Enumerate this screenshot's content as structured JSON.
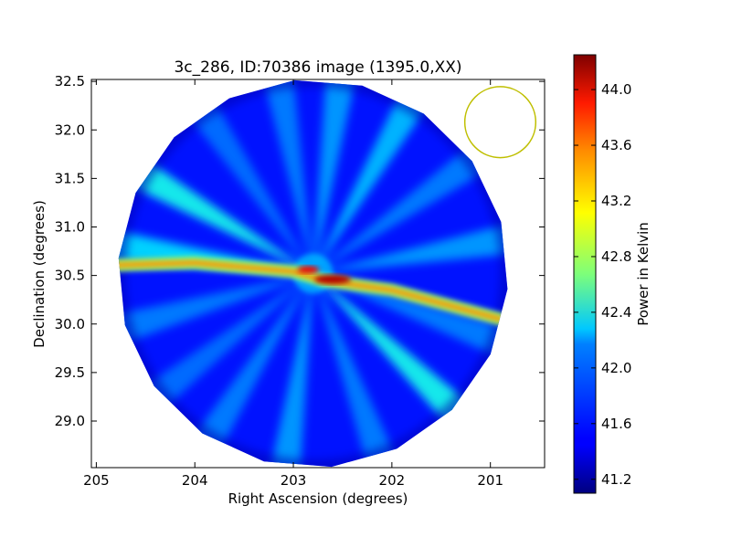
{
  "chart_data": {
    "type": "heatmap",
    "title": "3c_286, ID:70386 image (1395.0,XX)",
    "xlabel": "Right Ascension (degrees)",
    "ylabel": "Declination (degrees)",
    "colorbar_label": "Power in Kelvin",
    "colormap": "jet",
    "xlim": [
      205.05,
      200.45
    ],
    "ylim": [
      28.52,
      32.52
    ],
    "x_ticks": [
      205,
      204,
      203,
      202,
      201
    ],
    "y_ticks": [
      29.0,
      29.5,
      30.0,
      30.5,
      31.0,
      31.5,
      32.0,
      32.5
    ],
    "x_tick_labels": [
      "205",
      "204",
      "203",
      "202",
      "201"
    ],
    "y_tick_labels": [
      "29.0",
      "29.5",
      "30.0",
      "30.5",
      "31.0",
      "31.5",
      "32.0",
      "32.5"
    ],
    "colorbar_range": [
      41.1,
      44.25
    ],
    "colorbar_ticks": [
      41.2,
      41.6,
      42.0,
      42.4,
      42.8,
      43.2,
      43.6,
      44.0
    ],
    "colorbar_tick_labels": [
      "41.2",
      "41.6",
      "42.0",
      "42.4",
      "42.8",
      "43.2",
      "43.6",
      "44.0"
    ],
    "field": {
      "center_ra": 202.8,
      "center_dec": 30.52,
      "radius_deg": 2.0,
      "base_level": 41.55,
      "spokes": [
        {
          "angle_deg": 10,
          "level": 42.0
        },
        {
          "angle_deg": 35,
          "level": 41.9
        },
        {
          "angle_deg": 60,
          "level": 42.1
        },
        {
          "angle_deg": 82,
          "level": 42.0
        },
        {
          "angle_deg": 100,
          "level": 41.9
        },
        {
          "angle_deg": 124,
          "level": 41.85
        },
        {
          "angle_deg": 150,
          "level": 42.35
        },
        {
          "angle_deg": 172,
          "level": 42.2
        },
        {
          "angle_deg": 196,
          "level": 41.9
        },
        {
          "angle_deg": 218,
          "level": 41.85
        },
        {
          "angle_deg": 238,
          "level": 41.9
        },
        {
          "angle_deg": 262,
          "level": 42.0
        },
        {
          "angle_deg": 290,
          "level": 41.9
        },
        {
          "angle_deg": 316,
          "level": 42.35
        },
        {
          "angle_deg": 340,
          "level": 41.9
        }
      ],
      "streak": {
        "points": [
          [
            205.0,
            30.6
          ],
          [
            204.0,
            30.63
          ],
          [
            203.0,
            30.54
          ],
          [
            202.7,
            30.45
          ],
          [
            202.0,
            30.35
          ],
          [
            200.9,
            30.05
          ]
        ],
        "level": 43.4,
        "peak_level": 44.1,
        "peak_at": [
          202.6,
          30.46
        ]
      }
    },
    "beam_circle": {
      "ra": 200.9,
      "dec": 32.08,
      "radius_deg": 0.36,
      "color": "#bfbf00"
    }
  }
}
